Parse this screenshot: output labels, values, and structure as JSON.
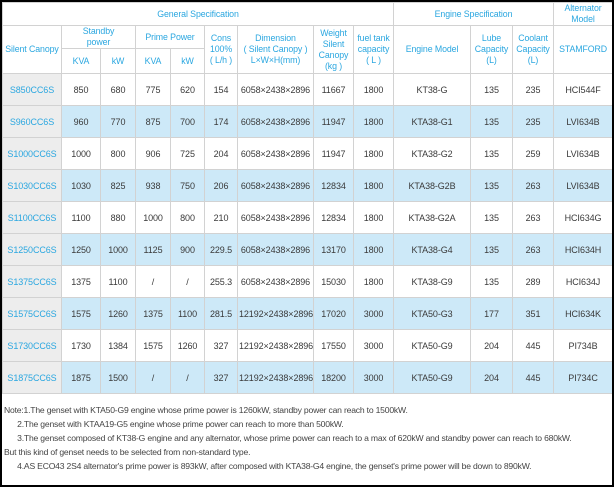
{
  "colors": {
    "accent_blue": "#2BA7E0",
    "row_highlight": "#CDE9F8",
    "model_column_bg": "#EDEDED",
    "grid_border": "#D2D2D2",
    "page_border": "#000000"
  },
  "table": {
    "top_headers": {
      "general": "General Specification",
      "engine": "Engine Specification",
      "alternator": "Alternator\nModel"
    },
    "columns": {
      "silent_canopy": "Silent Canopy",
      "standby_power": "Standby\npower",
      "prime_power": "Prime Power",
      "standby_kva": "KVA",
      "standby_kw": "kW",
      "prime_kva": "KVA",
      "prime_kw": "kW",
      "cons": "Cons\n100%\n( L/h )",
      "dimension": "Dimension\n( Silent Canopy )\nL×W×H(mm)",
      "weight": "Weight\nSilent\nCanopy\n(kg )",
      "fuel": "fuel tank\ncapacity\n( L )",
      "engine_model": "Engine Model",
      "lube": "Lube\nCapacity\n(L)",
      "coolant": "Coolant\nCapacity\n(L)",
      "stamford": "STAMFORD"
    },
    "rows": [
      {
        "model": "S850CC6S",
        "standby_kva": "850",
        "standby_kw": "680",
        "prime_kva": "775",
        "prime_kw": "620",
        "cons": "154",
        "dimension": "6058×2438×2896",
        "weight": "11667",
        "fuel": "1800",
        "engine": "KT38-G",
        "lube": "135",
        "coolant": "235",
        "alternator": "HCI544F"
      },
      {
        "model": "S960CC6S",
        "standby_kva": "960",
        "standby_kw": "770",
        "prime_kva": "875",
        "prime_kw": "700",
        "cons": "174",
        "dimension": "6058×2438×2896",
        "weight": "11947",
        "fuel": "1800",
        "engine": "KTA38-G1",
        "lube": "135",
        "coolant": "235",
        "alternator": "LVI634B"
      },
      {
        "model": "S1000CC6S",
        "standby_kva": "1000",
        "standby_kw": "800",
        "prime_kva": "906",
        "prime_kw": "725",
        "cons": "204",
        "dimension": "6058×2438×2896",
        "weight": "11947",
        "fuel": "1800",
        "engine": "KTA38-G2",
        "lube": "135",
        "coolant": "259",
        "alternator": "LVI634B"
      },
      {
        "model": "S1030CC6S",
        "standby_kva": "1030",
        "standby_kw": "825",
        "prime_kva": "938",
        "prime_kw": "750",
        "cons": "206",
        "dimension": "6058×2438×2896",
        "weight": "12834",
        "fuel": "1800",
        "engine": "KTA38-G2B",
        "lube": "135",
        "coolant": "263",
        "alternator": "LVI634B"
      },
      {
        "model": "S1100CC6S",
        "standby_kva": "1100",
        "standby_kw": "880",
        "prime_kva": "1000",
        "prime_kw": "800",
        "cons": "210",
        "dimension": "6058×2438×2896",
        "weight": "12834",
        "fuel": "1800",
        "engine": "KTA38-G2A",
        "lube": "135",
        "coolant": "263",
        "alternator": "HCI634G"
      },
      {
        "model": "S1250CC6S",
        "standby_kva": "1250",
        "standby_kw": "1000",
        "prime_kva": "1125",
        "prime_kw": "900",
        "cons": "229.5",
        "dimension": "6058×2438×2896",
        "weight": "13170",
        "fuel": "1800",
        "engine": "KTA38-G4",
        "lube": "135",
        "coolant": "263",
        "alternator": "HCI634H"
      },
      {
        "model": "S1375CC6S",
        "standby_kva": "1375",
        "standby_kw": "1100",
        "prime_kva": "/",
        "prime_kw": "/",
        "cons": "255.3",
        "dimension": "6058×2438×2896",
        "weight": "15030",
        "fuel": "1800",
        "engine": "KTA38-G9",
        "lube": "135",
        "coolant": "289",
        "alternator": "HCI634J"
      },
      {
        "model": "S1575CC6S",
        "standby_kva": "1575",
        "standby_kw": "1260",
        "prime_kva": "1375",
        "prime_kw": "1100",
        "cons": "281.5",
        "dimension": "12192×2438×2896",
        "weight": "17020",
        "fuel": "3000",
        "engine": "KTA50-G3",
        "lube": "177",
        "coolant": "351",
        "alternator": "HCI634K"
      },
      {
        "model": "S1730CC6S",
        "standby_kva": "1730",
        "standby_kw": "1384",
        "prime_kva": "1575",
        "prime_kw": "1260",
        "cons": "327",
        "dimension": "12192×2438×2896",
        "weight": "17550",
        "fuel": "3000",
        "engine": "KTA50-G9",
        "lube": "204",
        "coolant": "445",
        "alternator": "PI734B"
      },
      {
        "model": "S1875CC6S",
        "standby_kva": "1875",
        "standby_kw": "1500",
        "prime_kva": "/",
        "prime_kw": "/",
        "cons": "327",
        "dimension": "12192×2438×2896",
        "weight": "18200",
        "fuel": "3000",
        "engine": "KTA50-G9",
        "lube": "204",
        "coolant": "445",
        "alternator": "PI734C"
      }
    ]
  },
  "notes": [
    "Note:1.The genset with KTA50-G9 engine whose prime power is 1260kW, standby power can reach to 1500kW.",
    "      2.The genset with KTAA19-G5 engine whose prime power can reach to more than 500kW.",
    "      3.The genset composed of KT38-G engine and any alternator, whose prime power can reach to a max of 620kW and standby power can reach to 680kW.",
    "But this kind of genset needs to be selected from non-standard type.",
    "      4.AS ECO43 2S4 alternator's prime power is 893kW, after composed with KTA38-G4 engine, the genset's prime power will be down to 890kW."
  ]
}
